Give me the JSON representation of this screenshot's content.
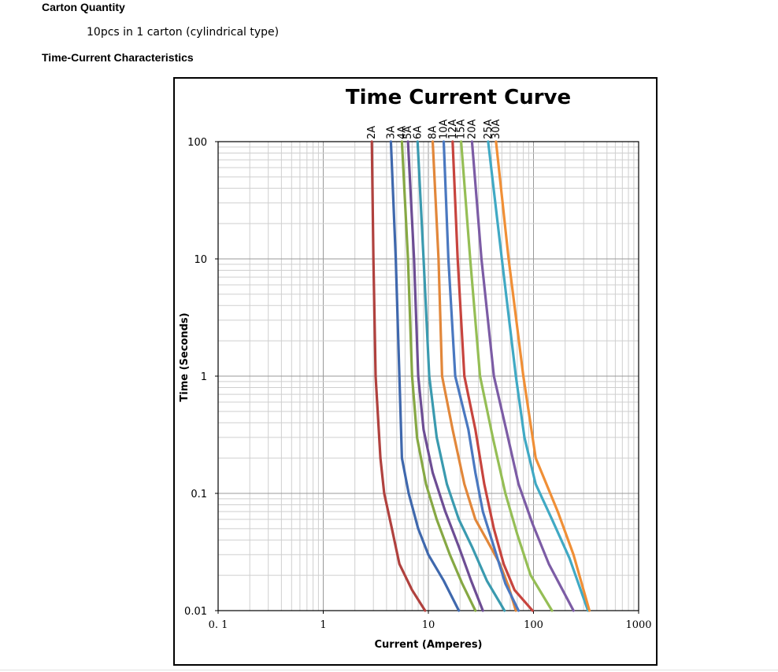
{
  "sections": {
    "carton_quantity": {
      "heading": "Carton Quantity",
      "text": "10pcs in 1 carton (cylindrical type)"
    },
    "time_current": {
      "heading": "Time-Current Characteristics"
    }
  },
  "chart_data": {
    "type": "line",
    "title": "Time Current Curve",
    "xlabel": "Current (Amperes)",
    "ylabel": "Time (Seconds)",
    "x_scale": "log",
    "y_scale": "log",
    "xlim": [
      0.1,
      1000
    ],
    "ylim": [
      0.01,
      100
    ],
    "x_ticks": [
      "0. 1",
      "1",
      "10",
      "100",
      "1000"
    ],
    "y_ticks": [
      "100",
      "10",
      "1",
      "0.1",
      "0.01"
    ],
    "grid": true,
    "legend": "labels at top of each curve",
    "series": [
      {
        "name": "2A",
        "color": "#b0413e",
        "points": [
          [
            2.9,
            100
          ],
          [
            3.0,
            10
          ],
          [
            3.15,
            1
          ],
          [
            3.5,
            0.2
          ],
          [
            3.8,
            0.1
          ],
          [
            4.5,
            0.05
          ],
          [
            5.3,
            0.025
          ],
          [
            7.0,
            0.015
          ],
          [
            9.3,
            0.01
          ]
        ]
      },
      {
        "name": "3A",
        "color": "#3f68ad",
        "points": [
          [
            4.4,
            100
          ],
          [
            4.9,
            10
          ],
          [
            5.3,
            1
          ],
          [
            5.6,
            0.2
          ],
          [
            6.5,
            0.1
          ],
          [
            8.0,
            0.05
          ],
          [
            10.0,
            0.03
          ],
          [
            14.0,
            0.018
          ],
          [
            19.5,
            0.01
          ]
        ]
      },
      {
        "name": "4A",
        "color": "#86a844",
        "points": [
          [
            5.6,
            100
          ],
          [
            6.4,
            10
          ],
          [
            7.0,
            1
          ],
          [
            7.8,
            0.3
          ],
          [
            9.5,
            0.12
          ],
          [
            12.0,
            0.06
          ],
          [
            16.0,
            0.03
          ],
          [
            21.0,
            0.017
          ],
          [
            28.0,
            0.01
          ]
        ]
      },
      {
        "name": "5A",
        "color": "#6d4d94",
        "points": [
          [
            6.4,
            100
          ],
          [
            7.3,
            10
          ],
          [
            8.0,
            1
          ],
          [
            9.0,
            0.35
          ],
          [
            11.0,
            0.15
          ],
          [
            14.5,
            0.07
          ],
          [
            19.5,
            0.035
          ],
          [
            25.5,
            0.018
          ],
          [
            33.0,
            0.01
          ]
        ]
      },
      {
        "name": "6A",
        "color": "#3a9aaf",
        "points": [
          [
            7.9,
            100
          ],
          [
            9.0,
            10
          ],
          [
            10.2,
            1
          ],
          [
            12.0,
            0.3
          ],
          [
            15.0,
            0.12
          ],
          [
            19.5,
            0.06
          ],
          [
            26.0,
            0.035
          ],
          [
            36.0,
            0.018
          ],
          [
            53.0,
            0.01
          ]
        ]
      },
      {
        "name": "8A",
        "color": "#e2873a",
        "points": [
          [
            11.0,
            100
          ],
          [
            12.5,
            10
          ],
          [
            13.5,
            1
          ],
          [
            17.0,
            0.35
          ],
          [
            22.0,
            0.12
          ],
          [
            28.0,
            0.06
          ],
          [
            36.0,
            0.04
          ],
          [
            48.0,
            0.025
          ],
          [
            58.0,
            0.016
          ],
          [
            68.0,
            0.01
          ]
        ]
      },
      {
        "name": "10A",
        "color": "#4a78c0",
        "points": [
          [
            14.0,
            100
          ],
          [
            15.5,
            10
          ],
          [
            18.0,
            1
          ],
          [
            24.0,
            0.35
          ],
          [
            28.0,
            0.15
          ],
          [
            33.0,
            0.07
          ],
          [
            42.0,
            0.035
          ],
          [
            54.0,
            0.017
          ],
          [
            72.0,
            0.01
          ]
        ]
      },
      {
        "name": "12A",
        "color": "#c7443e",
        "points": [
          [
            17.0,
            100
          ],
          [
            19.0,
            10
          ],
          [
            22.0,
            1
          ],
          [
            28.0,
            0.35
          ],
          [
            34.0,
            0.12
          ],
          [
            42.0,
            0.05
          ],
          [
            52.0,
            0.025
          ],
          [
            66.0,
            0.015
          ],
          [
            98.0,
            0.01
          ]
        ]
      },
      {
        "name": "15A",
        "color": "#95be55",
        "points": [
          [
            20.5,
            100
          ],
          [
            25.0,
            10
          ],
          [
            31.0,
            1
          ],
          [
            41.0,
            0.3
          ],
          [
            54.0,
            0.1
          ],
          [
            70.0,
            0.045
          ],
          [
            94.0,
            0.02
          ],
          [
            150.0,
            0.01
          ]
        ]
      },
      {
        "name": "20A",
        "color": "#7c5ca5",
        "points": [
          [
            26.0,
            100
          ],
          [
            32.0,
            10
          ],
          [
            42.0,
            1
          ],
          [
            55.0,
            0.35
          ],
          [
            72.0,
            0.12
          ],
          [
            98.0,
            0.055
          ],
          [
            140.0,
            0.025
          ],
          [
            240.0,
            0.01
          ]
        ]
      },
      {
        "name": "25A",
        "color": "#40a9c4",
        "points": [
          [
            37.0,
            100
          ],
          [
            50.0,
            10
          ],
          [
            68.0,
            1
          ],
          [
            82.0,
            0.3
          ],
          [
            105.0,
            0.12
          ],
          [
            150.0,
            0.06
          ],
          [
            220.0,
            0.028
          ],
          [
            330.0,
            0.01
          ]
        ]
      },
      {
        "name": "30A",
        "color": "#f08f36",
        "points": [
          [
            44.0,
            100
          ],
          [
            58.0,
            10
          ],
          [
            80.0,
            1
          ],
          [
            105.0,
            0.2
          ],
          [
            170.0,
            0.07
          ],
          [
            240.0,
            0.03
          ],
          [
            340.0,
            0.01
          ]
        ]
      }
    ]
  }
}
